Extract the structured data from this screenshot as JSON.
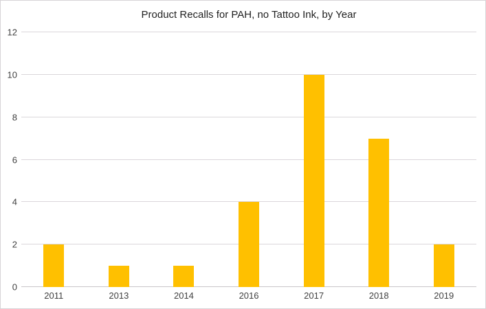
{
  "chart_data": {
    "type": "bar",
    "title": "Product Recalls for PAH, no Tattoo Ink, by Year",
    "categories": [
      "2011",
      "2013",
      "2014",
      "2016",
      "2017",
      "2018",
      "2019"
    ],
    "values": [
      2,
      1,
      1,
      4,
      10,
      7,
      2
    ],
    "xlabel": "",
    "ylabel": "",
    "ylim": [
      0,
      12
    ],
    "yticks": [
      0,
      2,
      4,
      6,
      8,
      10,
      12
    ],
    "grid": true,
    "legend": "none",
    "colors": {
      "bar": "#FFC000",
      "gridline": "#DAD6DA",
      "axis_line": "#C9C5C9",
      "tick_text": "#404040",
      "title_text": "#1F1F1F",
      "background": "#FFFFFF",
      "border": "#D7D3D7"
    }
  }
}
